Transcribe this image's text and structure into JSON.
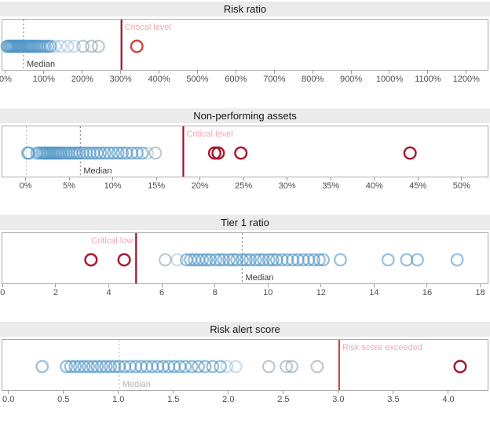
{
  "colors": {
    "title_band_bg": "#ebebeb",
    "title_text": "#141414",
    "plot_border": "#ababab",
    "tick_text": "#4d4d4d",
    "circle_blue": "#4e95c5",
    "circle_lightblue": "#4e95c5",
    "circle_gray": "#93a5b1",
    "circle_red": "#d2403a",
    "circle_darkred": "#a51c33",
    "critical_line_dark": "#a01327",
    "critical_line_bright": "#d64545",
    "critical_label_pink": "#f3a6b4",
    "median_line_dark": "#909090",
    "median_line_light": "#c2c2c2",
    "median_text_dark": "#3d3d3d",
    "median_text_light": "#b4b4b4",
    "zero_line": "#c4c4c4"
  },
  "chart_data": [
    {
      "type": "scatter",
      "title": "Risk ratio",
      "xmin": -10.2,
      "xmax": 1253.6,
      "tick_values": [
        0,
        100,
        200,
        300,
        400,
        500,
        600,
        700,
        800,
        900,
        1000,
        1100,
        1200
      ],
      "tick_labels": [
        "0%",
        "100%",
        "200%",
        "300%",
        "400%",
        "500%",
        "600%",
        "700%",
        "800%",
        "900%",
        "1000%",
        "1100%",
        "1200%"
      ],
      "median": {
        "value": 45,
        "label": "Median",
        "tone": "dark"
      },
      "zero_line": null,
      "critical": {
        "value": 300,
        "label": "Critical level",
        "side": "right",
        "tone": "dark"
      },
      "points": {
        "blue": [
          2,
          5,
          8,
          11,
          14,
          17,
          20,
          23,
          26,
          29,
          32,
          35,
          38,
          41,
          45,
          49,
          53,
          57,
          61,
          65,
          69,
          74,
          79,
          84,
          89,
          95,
          101,
          108,
          115
        ],
        "lightblue": [
          127,
          142,
          160,
          177
        ],
        "gray": [
          200,
          222,
          240
        ],
        "red": [
          340
        ],
        "darkred": []
      }
    },
    {
      "type": "scatter",
      "title": "Non-performing assets",
      "xmin": -2.75,
      "xmax": 52.9,
      "tick_values": [
        0,
        5,
        10,
        15,
        20,
        25,
        30,
        35,
        40,
        45,
        50
      ],
      "tick_labels": [
        "0%",
        "5%",
        "10%",
        "15%",
        "20%",
        "25%",
        "30%",
        "35%",
        "40%",
        "45%",
        "50%"
      ],
      "median": {
        "value": 6.2,
        "label": "Median",
        "tone": "dark"
      },
      "zero_line": 0,
      "critical": {
        "value": 18,
        "label": "Critical level",
        "side": "right",
        "tone": "dark"
      },
      "points": {
        "blue": [
          0.15,
          0.3,
          1.2,
          1.5,
          1.8,
          2.0,
          2.2,
          2.4,
          2.6,
          2.8,
          3.0,
          3.2,
          3.4,
          3.6,
          3.8,
          4.0,
          4.3,
          4.6,
          4.9,
          5.2,
          5.5,
          5.8,
          6.1,
          6.5,
          6.9,
          7.3,
          7.7,
          8.1,
          8.5,
          9.0,
          9.5,
          10.0,
          10.5,
          11.0,
          11.5,
          12.1,
          12.7,
          13.3
        ],
        "lightblue": [
          13.9
        ],
        "gray": [
          14.8
        ],
        "red": [],
        "darkred": [
          21.6,
          22.0,
          24.6,
          44.0
        ]
      }
    },
    {
      "type": "scatter",
      "title": "Tier 1 ratio",
      "xmin": -0.04,
      "xmax": 18.25,
      "tick_values": [
        0,
        2,
        4,
        6,
        8,
        10,
        12,
        14,
        16,
        18
      ],
      "tick_labels": [
        "0",
        "2",
        "4",
        "6",
        "8",
        "10",
        "12",
        "14",
        "16",
        "18"
      ],
      "median": {
        "value": 9.0,
        "label": "Median",
        "tone": "dark"
      },
      "zero_line": null,
      "critical": {
        "value": 5.0,
        "label": "Critical low",
        "side": "left",
        "tone": "dark"
      },
      "points": {
        "blue": [
          6.9,
          7.05,
          7.2,
          7.35,
          7.5,
          7.65,
          7.8,
          8.0,
          8.15,
          8.3,
          8.5,
          8.65,
          8.8,
          9.0,
          9.15,
          9.3,
          9.5,
          9.65,
          9.8,
          10.0,
          10.15,
          10.3,
          10.5,
          10.7,
          10.9,
          11.1,
          11.3,
          11.5,
          11.7,
          11.9,
          12.05,
          12.7,
          14.5,
          15.2,
          15.6,
          17.1
        ],
        "lightblue": [
          6.55
        ],
        "gray": [
          6.1
        ],
        "red": [],
        "darkred": [
          3.3,
          4.55
        ]
      }
    },
    {
      "type": "scatter",
      "title": "Risk alert score",
      "xmin": -0.062,
      "xmax": 4.35,
      "tick_values": [
        0,
        0.5,
        1.0,
        1.5,
        2.0,
        2.5,
        3.0,
        3.5,
        4.0
      ],
      "tick_labels": [
        "0.0",
        "0.5",
        "1.0",
        "1.5",
        "2.0",
        "2.5",
        "3.0",
        "3.5",
        "4.0"
      ],
      "median": {
        "value": 1.0,
        "label": "Median",
        "tone": "light"
      },
      "zero_line": null,
      "critical": {
        "value": 3.0,
        "label": "Risk score exceeded",
        "side": "right",
        "tone": "bright"
      },
      "points": {
        "blue": [
          0.3,
          0.52,
          0.56,
          0.6,
          0.64,
          0.68,
          0.72,
          0.76,
          0.8,
          0.84,
          0.88,
          0.92,
          0.96,
          1.0,
          1.05,
          1.1,
          1.15,
          1.2,
          1.25,
          1.3,
          1.35,
          1.4,
          1.45,
          1.5,
          1.55,
          1.6,
          1.66,
          1.72,
          1.78,
          1.85,
          1.92
        ],
        "lightblue": [
          1.98,
          2.06
        ],
        "gray": [
          2.36,
          2.52,
          2.57,
          2.8
        ],
        "red": [],
        "darkred": [
          4.1
        ]
      }
    }
  ]
}
